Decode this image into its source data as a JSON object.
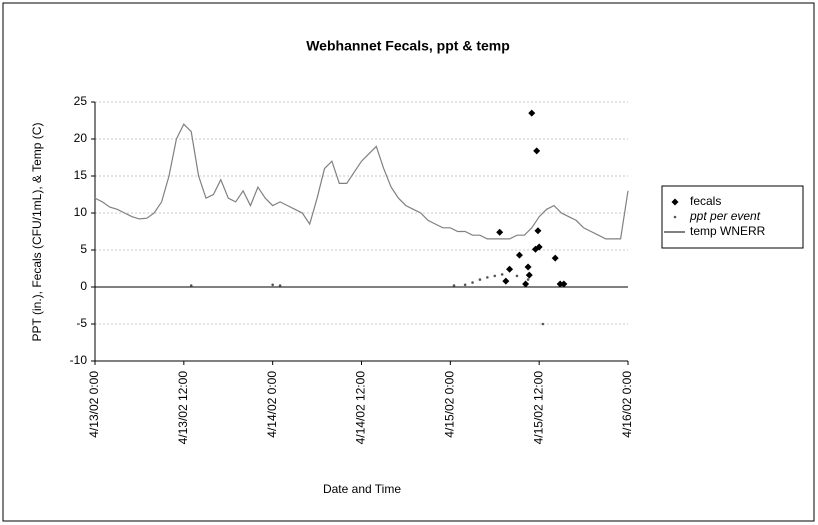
{
  "chart_data": {
    "type": "scatter",
    "title": "Webhannet Fecals, ppt & temp",
    "x_label": "Date and Time",
    "y_label": "PPT (in.), Fecals (CFU/1mL), & Temp (C)",
    "xlim": [
      "4/13/02 0:00",
      "4/16/02 0:00"
    ],
    "xticks": [
      "4/13/02 0:00",
      "4/13/02 12:00",
      "4/14/02 0:00",
      "4/14/02 12:00",
      "4/15/02 0:00",
      "4/15/02 12:00",
      "4/16/02 0:00"
    ],
    "ylim": [
      -10,
      25
    ],
    "yticks": [
      -10,
      -5,
      0,
      5,
      10,
      15,
      20,
      25
    ],
    "grid": true,
    "legend": "right",
    "series": [
      {
        "name": "fecals",
        "color": "#000000",
        "marker": "diamond",
        "x": [
          "4/15/02 6:40",
          "4/15/02 8:00",
          "4/15/02 7:30",
          "4/15/02 9:20",
          "4/15/02 10:10",
          "4/15/02 10:30",
          "4/15/02 10:40",
          "4/15/02 11:00",
          "4/15/02 11:40",
          "4/15/02 11:50",
          "4/15/02 12:00",
          "4/15/02 11:30",
          "4/15/02 14:10",
          "4/15/02 14:50",
          "4/15/02 15:20"
        ],
        "values": [
          7.4,
          2.4,
          0.8,
          4.3,
          0.4,
          2.7,
          1.6,
          23.5,
          18.4,
          7.6,
          5.4,
          5.1,
          3.9,
          0.4,
          0.4
        ]
      },
      {
        "name": "ppt per event",
        "color": "#555555",
        "marker": "dot",
        "x": [
          "4/13/02 13:00",
          "4/14/02 0:00",
          "4/14/02 1:00",
          "4/15/02 0:30",
          "4/15/02 2:00",
          "4/15/02 3:00",
          "4/15/02 4:00",
          "4/15/02 5:00",
          "4/15/02 6:00",
          "4/15/02 7:00",
          "4/15/02 9:00",
          "4/15/02 10:30",
          "4/15/02 12:30"
        ],
        "values": [
          0.2,
          0.3,
          0.2,
          0.2,
          0.3,
          0.6,
          1.0,
          1.3,
          1.5,
          1.7,
          1.5,
          1.0,
          -5
        ]
      },
      {
        "name": "temp WNERR",
        "color": "#808080",
        "marker": "line",
        "x": [
          "4/13/02 0:00",
          "4/13/02 1:00",
          "4/13/02 2:00",
          "4/13/02 3:00",
          "4/13/02 4:00",
          "4/13/02 5:00",
          "4/13/02 6:00",
          "4/13/02 7:00",
          "4/13/02 8:00",
          "4/13/02 9:00",
          "4/13/02 10:00",
          "4/13/02 11:00",
          "4/13/02 12:00",
          "4/13/02 13:00",
          "4/13/02 14:00",
          "4/13/02 15:00",
          "4/13/02 16:00",
          "4/13/02 17:00",
          "4/13/02 18:00",
          "4/13/02 19:00",
          "4/13/02 20:00",
          "4/13/02 21:00",
          "4/13/02 22:00",
          "4/13/02 23:00",
          "4/14/02 0:00",
          "4/14/02 1:00",
          "4/14/02 2:00",
          "4/14/02 3:00",
          "4/14/02 4:00",
          "4/14/02 5:00",
          "4/14/02 6:00",
          "4/14/02 7:00",
          "4/14/02 8:00",
          "4/14/02 9:00",
          "4/14/02 10:00",
          "4/14/02 11:00",
          "4/14/02 12:00",
          "4/14/02 13:00",
          "4/14/02 14:00",
          "4/14/02 15:00",
          "4/14/02 16:00",
          "4/14/02 17:00",
          "4/14/02 18:00",
          "4/14/02 19:00",
          "4/14/02 20:00",
          "4/14/02 21:00",
          "4/14/02 22:00",
          "4/14/02 23:00",
          "4/15/02 0:00",
          "4/15/02 1:00",
          "4/15/02 2:00",
          "4/15/02 3:00",
          "4/15/02 4:00",
          "4/15/02 5:00",
          "4/15/02 6:00",
          "4/15/02 7:00",
          "4/15/02 8:00",
          "4/15/02 9:00",
          "4/15/02 10:00",
          "4/15/02 11:00",
          "4/15/02 12:00",
          "4/15/02 13:00",
          "4/15/02 14:00",
          "4/15/02 15:00",
          "4/15/02 16:00",
          "4/15/02 17:00",
          "4/15/02 18:00",
          "4/15/02 19:00",
          "4/15/02 20:00",
          "4/15/02 21:00",
          "4/15/02 22:00",
          "4/15/02 23:00",
          "4/16/02 0:00"
        ],
        "values": [
          12,
          11.5,
          10.8,
          10.5,
          10,
          9.5,
          9.2,
          9.3,
          10,
          11.5,
          15,
          20,
          22,
          21,
          15,
          12,
          12.5,
          14.5,
          12,
          11.5,
          13,
          11,
          13.5,
          12,
          11,
          11.5,
          11,
          10.5,
          10,
          8.5,
          12,
          16,
          17,
          14,
          14,
          15.5,
          17,
          18,
          19,
          16,
          13.5,
          12,
          11,
          10.5,
          10,
          9,
          8.5,
          8,
          8,
          7.5,
          7.5,
          7,
          7,
          6.5,
          6.5,
          6.5,
          6.5,
          7,
          7,
          8,
          9.5,
          10.5,
          11,
          10,
          9.5,
          9,
          8,
          7.5,
          7,
          6.5,
          6.5,
          6.5,
          13
        ]
      }
    ]
  }
}
